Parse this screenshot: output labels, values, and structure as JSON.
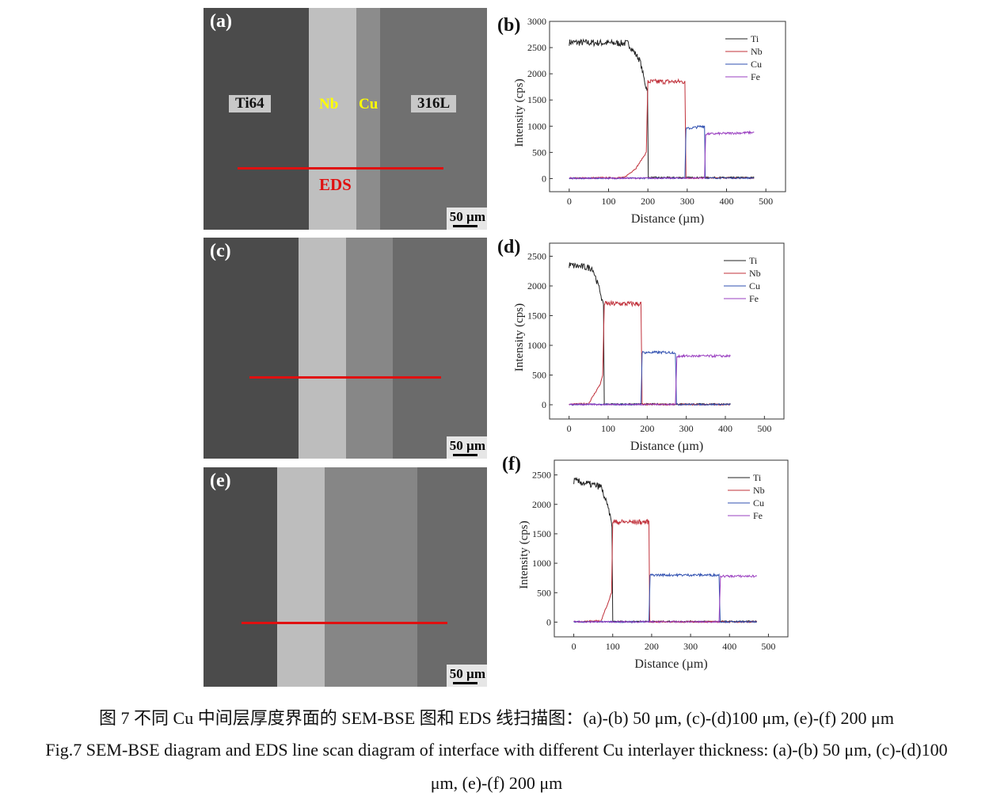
{
  "panels": {
    "a": {
      "label": "(a)",
      "labels": {
        "ti64": "Ti64",
        "nb": "Nb",
        "cu": "Cu",
        "s316": "316L",
        "eds": "EDS"
      },
      "scale": "50 µm"
    },
    "c": {
      "label": "(c)",
      "scale": "50 µm"
    },
    "e": {
      "label": "(e)",
      "scale": "50 µm"
    }
  },
  "colors": {
    "Ti": "#222222",
    "Nb": "#c0303a",
    "Cu": "#2f4fb0",
    "Fe": "#9a3fc0",
    "label_yellow": "#ffff00",
    "eds_red": "#e01010"
  },
  "chart_data": [
    {
      "id": "b",
      "panel_label": "(b)",
      "type": "line",
      "xlabel": "Distance (µm)",
      "ylabel": "Intensity (cps)",
      "xticks": [
        0,
        100,
        200,
        300,
        400,
        500
      ],
      "yticks": [
        0,
        500,
        1000,
        1500,
        2000,
        2500,
        3000
      ],
      "xlim": [
        -50,
        550
      ],
      "ylim": [
        -250,
        3000
      ],
      "legend": "top-right",
      "series": [
        {
          "name": "Ti",
          "points": [
            [
              0,
              2600
            ],
            [
              150,
              2580
            ],
            [
              180,
              2250
            ],
            [
              195,
              1750
            ],
            [
              199,
              1700
            ],
            [
              201,
              20
            ],
            [
              470,
              20
            ]
          ]
        },
        {
          "name": "Nb",
          "points": [
            [
              0,
              10
            ],
            [
              140,
              20
            ],
            [
              170,
              200
            ],
            [
              196,
              500
            ],
            [
              200,
              1850
            ],
            [
              294,
              1850
            ],
            [
              297,
              10
            ],
            [
              470,
              10
            ]
          ]
        },
        {
          "name": "Cu",
          "points": [
            [
              0,
              5
            ],
            [
              294,
              10
            ],
            [
              297,
              950
            ],
            [
              340,
              1000
            ],
            [
              344,
              1000
            ],
            [
              346,
              10
            ],
            [
              470,
              10
            ]
          ]
        },
        {
          "name": "Fe",
          "points": [
            [
              0,
              5
            ],
            [
              344,
              10
            ],
            [
              347,
              850
            ],
            [
              470,
              880
            ]
          ]
        }
      ]
    },
    {
      "id": "d",
      "panel_label": "(d)",
      "type": "line",
      "xlabel": "Distance (µm)",
      "ylabel": "Intensity (cps)",
      "xticks": [
        0,
        100,
        200,
        300,
        400,
        500
      ],
      "yticks": [
        0,
        500,
        1000,
        1500,
        2000,
        2500
      ],
      "xlim": [
        -50,
        550
      ],
      "ylim": [
        -240,
        2720
      ],
      "legend": "top-right",
      "series": [
        {
          "name": "Ti",
          "points": [
            [
              0,
              2350
            ],
            [
              60,
              2300
            ],
            [
              80,
              1900
            ],
            [
              88,
              1650
            ],
            [
              90,
              10
            ],
            [
              413,
              10
            ]
          ]
        },
        {
          "name": "Nb",
          "points": [
            [
              0,
              5
            ],
            [
              50,
              20
            ],
            [
              80,
              350
            ],
            [
              86,
              500
            ],
            [
              90,
              1700
            ],
            [
              184,
              1700
            ],
            [
              187,
              5
            ],
            [
              413,
              5
            ]
          ]
        },
        {
          "name": "Cu",
          "points": [
            [
              0,
              5
            ],
            [
              184,
              5
            ],
            [
              187,
              880
            ],
            [
              272,
              880
            ],
            [
              275,
              5
            ],
            [
              413,
              5
            ]
          ]
        },
        {
          "name": "Fe",
          "points": [
            [
              0,
              5
            ],
            [
              272,
              5
            ],
            [
              276,
              820
            ],
            [
              413,
              820
            ]
          ]
        }
      ]
    },
    {
      "id": "f",
      "panel_label": "(f)",
      "type": "line",
      "xlabel": "Distance (µm)",
      "ylabel": "Intensity (cps)",
      "xticks": [
        0,
        100,
        200,
        300,
        400,
        500
      ],
      "yticks": [
        0,
        500,
        1000,
        1500,
        2000,
        2500
      ],
      "xlim": [
        -50,
        550
      ],
      "ylim": [
        -250,
        2750
      ],
      "legend": "top-right",
      "series": [
        {
          "name": "Ti",
          "points": [
            [
              0,
              2400
            ],
            [
              70,
              2300
            ],
            [
              90,
              1900
            ],
            [
              98,
              1650
            ],
            [
              100,
              10
            ],
            [
              470,
              10
            ]
          ]
        },
        {
          "name": "Nb",
          "points": [
            [
              0,
              5
            ],
            [
              70,
              20
            ],
            [
              92,
              400
            ],
            [
              97,
              500
            ],
            [
              100,
              1700
            ],
            [
              193,
              1700
            ],
            [
              195,
              5
            ],
            [
              470,
              5
            ]
          ]
        },
        {
          "name": "Cu",
          "points": [
            [
              0,
              5
            ],
            [
              193,
              5
            ],
            [
              196,
              800
            ],
            [
              373,
              800
            ],
            [
              376,
              5
            ],
            [
              470,
              5
            ]
          ]
        },
        {
          "name": "Fe",
          "points": [
            [
              0,
              5
            ],
            [
              373,
              5
            ],
            [
              377,
              780
            ],
            [
              470,
              780
            ]
          ]
        }
      ]
    }
  ],
  "caption": {
    "cn": "图 7  不同 Cu 中间层厚度界面的 SEM-BSE 图和 EDS 线扫描图：(a)-(b) 50 μm, (c)-(d)100 μm, (e)-(f) 200 μm",
    "en1": "Fig.7 SEM-BSE diagram and EDS line scan diagram of interface with different Cu interlayer thickness: (a)-(b) 50 μm, (c)-(d)100",
    "en2": "μm, (e)-(f) 200 μm"
  }
}
